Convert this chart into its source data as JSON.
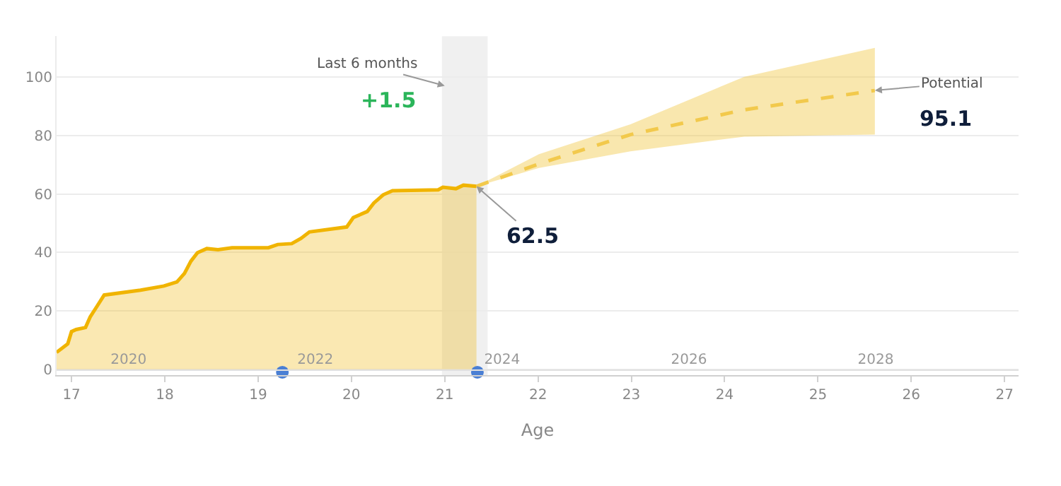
{
  "chart_data": {
    "type": "area",
    "xlabel": "Age",
    "xlim": [
      16.84,
      27.15
    ],
    "xticks": [
      17,
      18,
      19,
      20,
      21,
      22,
      23,
      24,
      25,
      26,
      27
    ],
    "x2lim": [
      2019.23,
      2029.53
    ],
    "x2ticks": [
      2020,
      2022,
      2024,
      2026,
      2028
    ],
    "ylim": [
      -2,
      114
    ],
    "yticks": [
      0,
      20,
      40,
      60,
      80,
      100
    ],
    "grid": "y",
    "series": [
      {
        "color": "#f0b400",
        "marker": "none",
        "x": [
          16.84,
          16.96,
          17.0,
          17.05,
          17.15,
          17.2,
          17.27,
          17.35,
          17.74,
          17.99,
          18.13,
          18.21,
          18.28,
          18.35,
          18.45,
          18.57,
          18.72,
          19.11,
          19.21,
          19.36,
          19.46,
          19.55,
          19.95,
          20.02,
          20.17,
          20.24,
          20.34,
          20.44,
          20.93,
          20.98,
          21.12,
          21.2,
          21.34
        ],
        "values": [
          5.8,
          8.7,
          12.9,
          13.6,
          14.3,
          17.9,
          21.4,
          25.4,
          27.1,
          28.5,
          29.9,
          32.8,
          37,
          39.9,
          41.3,
          40.9,
          41.6,
          41.6,
          42.7,
          43,
          44.8,
          47,
          48.7,
          51.9,
          54,
          56.9,
          59.7,
          61.1,
          61.4,
          62.3,
          61.8,
          63,
          62.6
        ]
      },
      {
        "type": "line",
        "color": "#f2c94c",
        "line_style": "dashed",
        "marker": "none",
        "x": [
          21.34,
          22.01,
          22.99,
          24.21,
          25.61
        ],
        "values": [
          62.6,
          70.3,
          80.3,
          88.8,
          95.4
        ],
        "lower": [
          62.6,
          68.9,
          74.6,
          79.6,
          80.3
        ],
        "upper": [
          62.6,
          73.6,
          83.8,
          100.1,
          110
        ]
      },
      {
        "type": "scatter",
        "color": "#4a7fd4",
        "marker": "circle",
        "x": [
          19.26,
          21.35
        ],
        "values": [
          -1,
          -1
        ]
      }
    ],
    "bands": [
      {
        "axis": "x",
        "from": 20.97,
        "to": 21.46,
        "color": "#e6e6e6"
      }
    ],
    "annotations": [
      {
        "text": "Last 6 months",
        "x": 21.0,
        "y": 97
      },
      {
        "text": "+1.5",
        "x": 21.0,
        "y": 97
      },
      {
        "text": "62.5",
        "x": 21.34,
        "y": 62.6
      },
      {
        "text": "Potential",
        "x": 25.61,
        "y": 95.4
      },
      {
        "text": "95.1",
        "x": 25.61,
        "y": 95.4
      }
    ]
  }
}
